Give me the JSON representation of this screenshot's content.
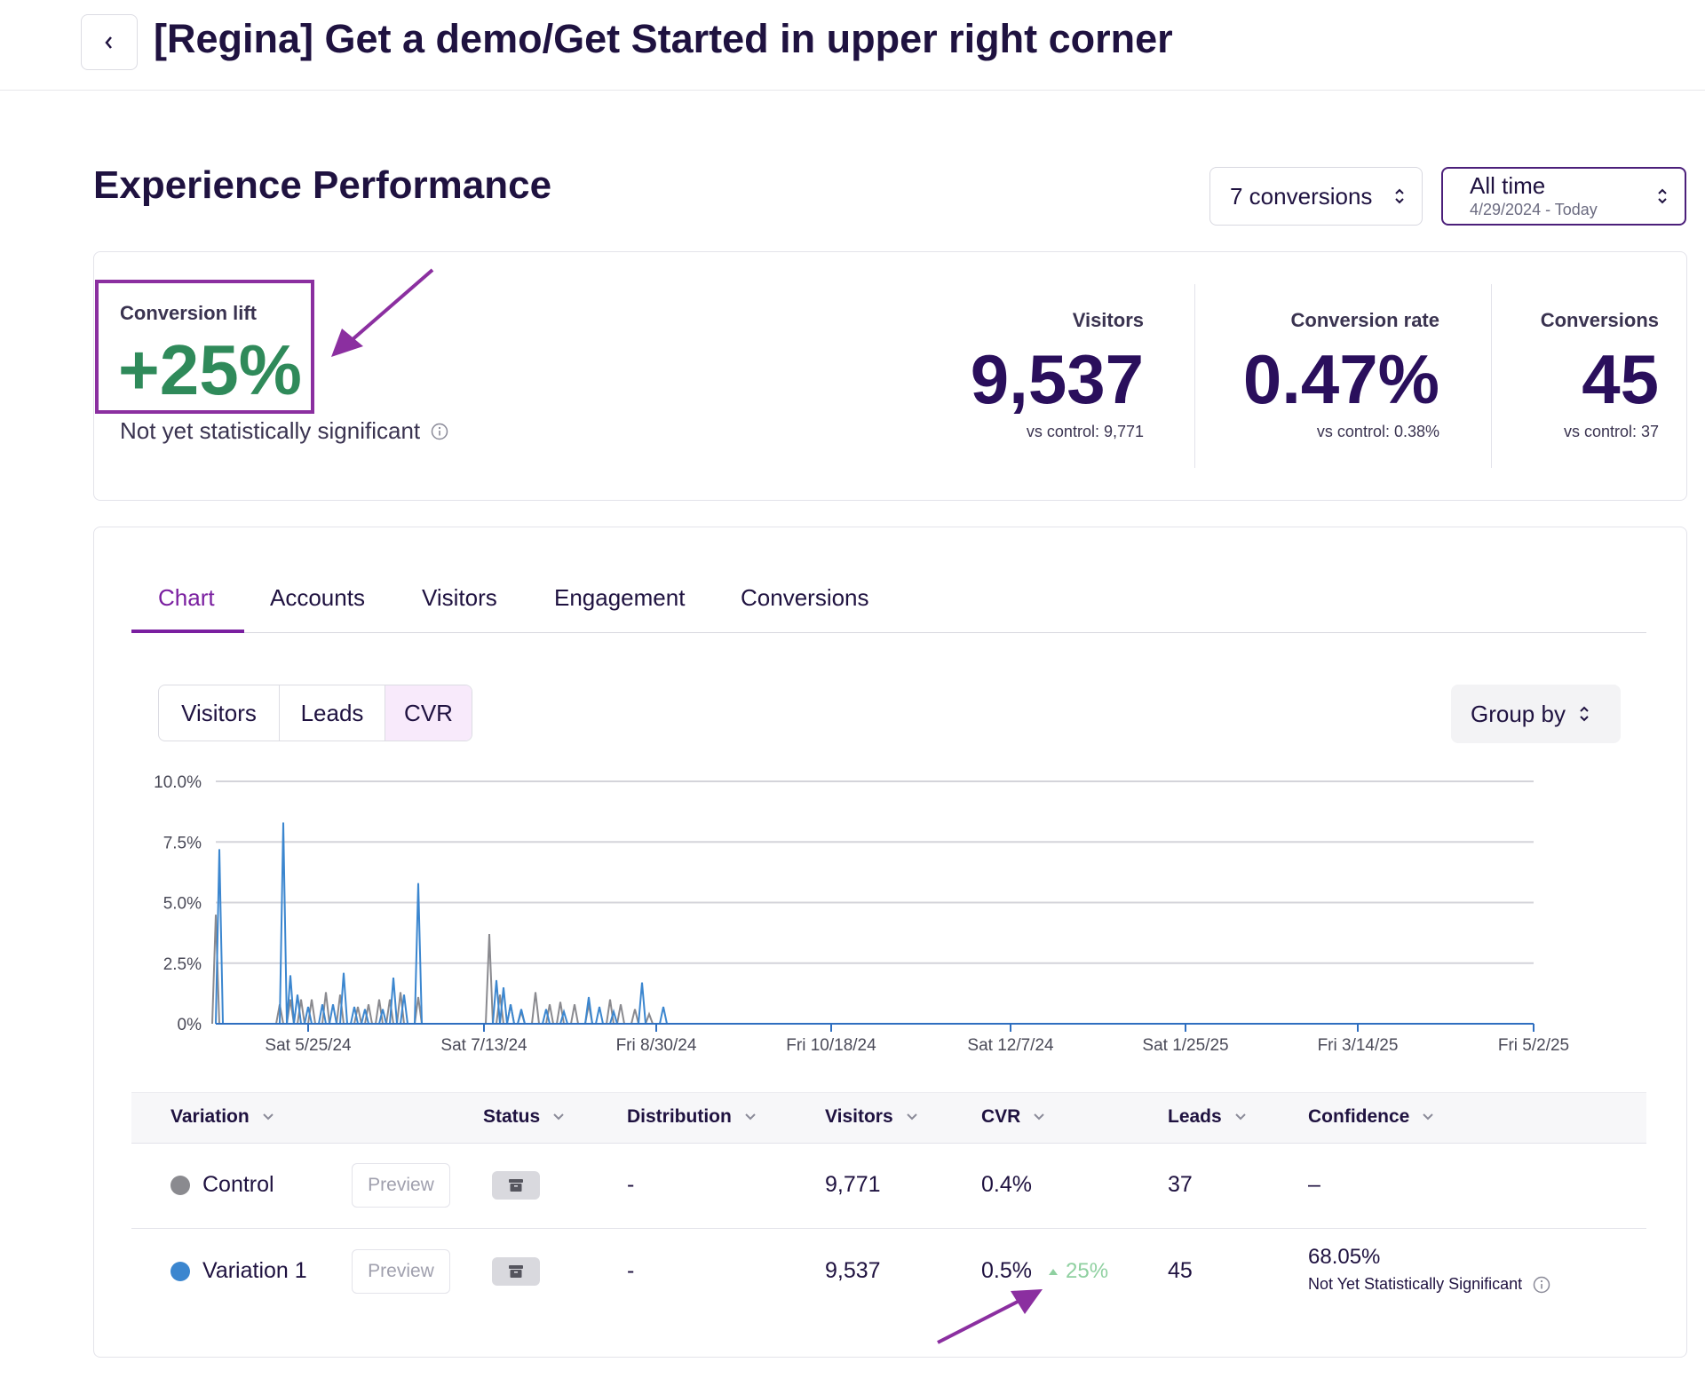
{
  "header": {
    "title": "[Regina] Get a demo/Get Started in upper right corner"
  },
  "section": {
    "title": "Experience Performance"
  },
  "filters": {
    "conversions_label": "7 conversions",
    "time_label": "All time",
    "time_range": "4/29/2024 - Today"
  },
  "summary": {
    "lift_label": "Conversion lift",
    "lift_value": "+25%",
    "significance_note": "Not yet statistically significant",
    "metrics": [
      {
        "label": "Visitors",
        "value": "9,537",
        "sub": "vs control: 9,771"
      },
      {
        "label": "Conversion rate",
        "value": "0.47%",
        "sub": "vs control: 0.38%"
      },
      {
        "label": "Conversions",
        "value": "45",
        "sub": "vs control: 37"
      }
    ]
  },
  "tabs": [
    "Chart",
    "Accounts",
    "Visitors",
    "Engagement",
    "Conversions"
  ],
  "active_tab": "Chart",
  "metric_toggle": [
    "Visitors",
    "Leads",
    "CVR"
  ],
  "metric_toggle_active": "CVR",
  "group_by_label": "Group by",
  "colors": {
    "accent": "#7a1fa0",
    "control": "#8a8a8f",
    "variation": "#3b86cf",
    "positive": "#2f8a5a"
  },
  "chart_data": {
    "type": "line",
    "y_ticks": [
      "10.0%",
      "7.5%",
      "5.0%",
      "2.5%",
      "0%"
    ],
    "ylim": [
      0,
      10
    ],
    "x_ticks": [
      "Sat 5/25/24",
      "Sat 7/13/24",
      "Fri 8/30/24",
      "Fri 10/18/24",
      "Sat 12/7/24",
      "Sat 1/25/25",
      "Fri 3/14/25",
      "Fri 5/2/25"
    ],
    "x_start": "2024-04-29",
    "x_end": "2025-05-05",
    "series": [
      {
        "name": "Control",
        "points": [
          [
            "2024-04-29",
            4.5
          ],
          [
            "2024-05-17",
            0.8
          ],
          [
            "2024-05-20",
            1.0
          ],
          [
            "2024-05-23",
            1.0
          ],
          [
            "2024-05-26",
            1.0
          ],
          [
            "2024-05-30",
            1.3
          ],
          [
            "2024-06-03",
            1.2
          ],
          [
            "2024-06-08",
            0.7
          ],
          [
            "2024-06-11",
            0.8
          ],
          [
            "2024-06-14",
            1.0
          ],
          [
            "2024-06-17",
            1.0
          ],
          [
            "2024-06-20",
            1.3
          ],
          [
            "2024-06-25",
            1.1
          ],
          [
            "2024-07-15",
            3.7
          ],
          [
            "2024-07-18",
            1.2
          ],
          [
            "2024-07-21",
            0.8
          ],
          [
            "2024-07-24",
            0.5
          ],
          [
            "2024-07-28",
            1.3
          ],
          [
            "2024-08-01",
            0.8
          ],
          [
            "2024-08-04",
            0.9
          ],
          [
            "2024-08-08",
            0.8
          ],
          [
            "2024-08-12",
            0.8
          ],
          [
            "2024-08-18",
            1.0
          ],
          [
            "2024-08-21",
            0.8
          ],
          [
            "2024-08-25",
            0.6
          ],
          [
            "2024-08-29",
            0.4
          ]
        ]
      },
      {
        "name": "Variation 1",
        "points": [
          [
            "2024-04-30",
            7.2
          ],
          [
            "2024-05-18",
            8.3
          ],
          [
            "2024-05-20",
            2.0
          ],
          [
            "2024-05-22",
            1.2
          ],
          [
            "2024-05-25",
            0.7
          ],
          [
            "2024-05-29",
            0.8
          ],
          [
            "2024-06-01",
            0.8
          ],
          [
            "2024-06-04",
            2.1
          ],
          [
            "2024-06-07",
            0.7
          ],
          [
            "2024-06-10",
            0.6
          ],
          [
            "2024-06-15",
            0.6
          ],
          [
            "2024-06-18",
            1.9
          ],
          [
            "2024-06-21",
            1.2
          ],
          [
            "2024-06-25",
            5.8
          ],
          [
            "2024-07-17",
            1.8
          ],
          [
            "2024-07-19",
            1.5
          ],
          [
            "2024-07-21",
            0.8
          ],
          [
            "2024-07-24",
            0.6
          ],
          [
            "2024-07-31",
            0.6
          ],
          [
            "2024-08-05",
            0.5
          ],
          [
            "2024-08-12",
            1.1
          ],
          [
            "2024-08-15",
            0.7
          ],
          [
            "2024-08-19",
            0.5
          ],
          [
            "2024-08-27",
            1.7
          ],
          [
            "2024-09-02",
            0.7
          ]
        ]
      }
    ]
  },
  "table": {
    "columns": [
      "Variation",
      "Status",
      "Distribution",
      "Visitors",
      "CVR",
      "Leads",
      "Confidence"
    ],
    "rows": [
      {
        "name": "Control",
        "preview": "Preview",
        "distribution": "-",
        "visitors": "9,771",
        "cvr": "0.4%",
        "lift": "",
        "leads": "37",
        "confidence": "–",
        "confidence_note": ""
      },
      {
        "name": "Variation 1",
        "preview": "Preview",
        "distribution": "-",
        "visitors": "9,537",
        "cvr": "0.5%",
        "lift": "25%",
        "leads": "45",
        "confidence": "68.05%",
        "confidence_note": "Not Yet Statistically Significant"
      }
    ]
  }
}
